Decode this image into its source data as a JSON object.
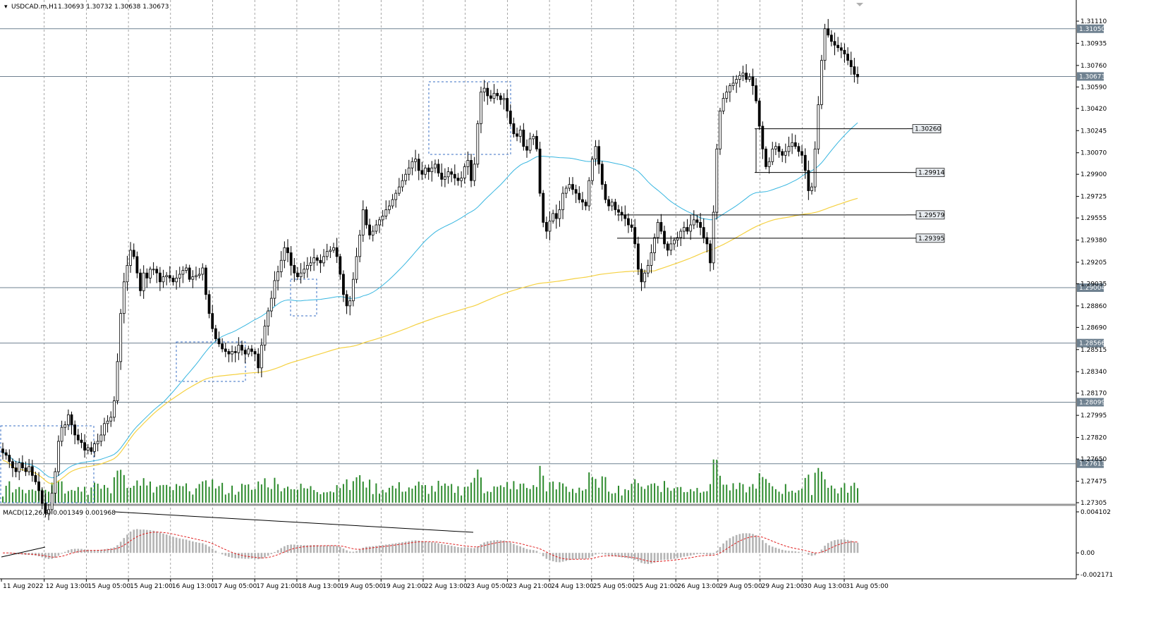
{
  "header": {
    "symbol": "USDCAD.m,H1",
    "ohlc": "1.30693 1.30732 1.30638 1.30673"
  },
  "macd_header": {
    "label": "MACD(12,26,9) 0.001349 0.001968"
  },
  "colors": {
    "bull": "#000000",
    "bear": "#000000",
    "ma_fast": "#38b6e0",
    "ma_slow": "#f5d142",
    "volume": "#2e8b2e",
    "macd_hist": "#b4b4b4",
    "macd_signal": "#e02020",
    "grid": "#808080",
    "hline": "#6f8190",
    "box": "#3a6fc4",
    "label_box": "#e8ecf0"
  },
  "chart_data": {
    "type": "candlestick",
    "timeframe": "H1",
    "price_axis": {
      "ticks": [
        "1.31110",
        "1.30935",
        "1.30760",
        "1.30590",
        "1.30420",
        "1.30245",
        "1.30070",
        "1.29900",
        "1.29725",
        "1.29555",
        "1.29380",
        "1.29205",
        "1.29035",
        "1.28860",
        "1.28690",
        "1.28515",
        "1.28340",
        "1.28170",
        "1.27995",
        "1.27820",
        "1.27650",
        "1.27475",
        "1.27305"
      ],
      "min": 1.27305,
      "max": 1.3111
    },
    "time_axis": {
      "labels": [
        "11 Aug 2022",
        "12 Aug 13:00",
        "15 Aug 05:00",
        "15 Aug 21:00",
        "16 Aug 13:00",
        "17 Aug 05:00",
        "17 Aug 21:00",
        "18 Aug 13:00",
        "19 Aug 05:00",
        "19 Aug 21:00",
        "22 Aug 13:00",
        "23 Aug 05:00",
        "23 Aug 21:00",
        "24 Aug 13:00",
        "25 Aug 05:00",
        "25 Aug 21:00",
        "26 Aug 13:00",
        "29 Aug 05:00",
        "29 Aug 21:00",
        "30 Aug 13:00",
        "31 Aug 05:00"
      ]
    },
    "horizontal_levels": [
      {
        "price": 1.3105,
        "label": "1.31050"
      },
      {
        "price": 1.30673,
        "label": "1.30673"
      },
      {
        "price": 1.29004,
        "label": "1.29004"
      },
      {
        "price": 1.28566,
        "label": "1.28566"
      },
      {
        "price": 1.28099,
        "label": "1.28099"
      },
      {
        "price": 1.27613,
        "label": "1.27613"
      }
    ],
    "trend_levels": [
      {
        "price": 1.3026,
        "label": "1.30260"
      },
      {
        "price": 1.29914,
        "label": "1.29914"
      },
      {
        "price": 1.29579,
        "label": "1.29579"
      },
      {
        "price": 1.29395,
        "label": "1.29395"
      }
    ],
    "candles": [
      1.277,
      1.2768,
      1.2763,
      1.2758,
      1.2755,
      1.2762,
      1.2758,
      1.2755,
      1.2759,
      1.2752,
      1.2747,
      1.274,
      1.273,
      1.2722,
      1.2725,
      1.2738,
      1.2755,
      1.2779,
      1.279,
      1.2792,
      1.28,
      1.2792,
      1.2784,
      1.278,
      1.2778,
      1.2772,
      1.2774,
      1.2771,
      1.2777,
      1.2779,
      1.2784,
      1.2793,
      1.2795,
      1.2798,
      1.2811,
      1.2842,
      1.288,
      1.2905,
      1.2918,
      1.293,
      1.2925,
      1.2912,
      1.2898,
      1.2912,
      1.2908,
      1.2915,
      1.2915,
      1.2912,
      1.2905,
      1.2909,
      1.291,
      1.2908,
      1.2905,
      1.2908,
      1.2911,
      1.2914,
      1.2916,
      1.2907,
      1.2909,
      1.291,
      1.2911,
      1.2916,
      1.2895,
      1.288,
      1.2868,
      1.286,
      1.2856,
      1.2852,
      1.285,
      1.2848,
      1.285,
      1.2849,
      1.2855,
      1.2851,
      1.2848,
      1.2852,
      1.285,
      1.2848,
      1.2837,
      1.2855,
      1.287,
      1.2882,
      1.2892,
      1.2906,
      1.2913,
      1.2922,
      1.2932,
      1.2928,
      1.2918,
      1.2912,
      1.2909,
      1.2912,
      1.2915,
      1.2918,
      1.292,
      1.2924,
      1.2922,
      1.292,
      1.2925,
      1.2929,
      1.293,
      1.2932,
      1.2925,
      1.2911,
      1.2895,
      1.2886,
      1.289,
      1.2907,
      1.2925,
      1.2942,
      1.2962,
      1.295,
      1.2942,
      1.2945,
      1.295,
      1.2954,
      1.2957,
      1.2962,
      1.2965,
      1.297,
      1.2975,
      1.298,
      1.2985,
      1.299,
      1.2995,
      1.3,
      1.3002,
      1.2993,
      1.299,
      1.2995,
      1.2992,
      1.2995,
      1.2998,
      1.2991,
      1.2986,
      1.2988,
      1.2992,
      1.299,
      1.2987,
      1.2985,
      1.2987,
      1.2996,
      1.3001,
      1.2985,
      1.2998,
      1.303,
      1.3055,
      1.3058,
      1.3052,
      1.305,
      1.3054,
      1.3052,
      1.3049,
      1.305,
      1.304,
      1.303,
      1.3022,
      1.302,
      1.3025,
      1.3012,
      1.3009,
      1.3018,
      1.302,
      1.301,
      1.2975,
      1.2952,
      1.2945,
      1.2953,
      1.2959,
      1.2955,
      1.2962,
      1.2975,
      1.2979,
      1.2982,
      1.2978,
      1.2975,
      1.297,
      1.2968,
      1.2965,
      1.2985,
      1.3002,
      1.3012,
      1.2998,
      1.2982,
      1.297,
      1.2965,
      1.2968,
      1.2962,
      1.296,
      1.2958,
      1.2955,
      1.295,
      1.2948,
      1.2935,
      1.2915,
      1.2905,
      1.2912,
      1.2918,
      1.2928,
      1.294,
      1.2952,
      1.2945,
      1.2935,
      1.293,
      1.2935,
      1.2938,
      1.294,
      1.2945,
      1.2948,
      1.2945,
      1.295,
      1.2954,
      1.2952,
      1.2948,
      1.294,
      1.2935,
      1.292,
      1.296,
      1.301,
      1.304,
      1.305,
      1.3055,
      1.306,
      1.3062,
      1.3065,
      1.3068,
      1.307,
      1.3065,
      1.3067,
      1.306,
      1.3048,
      1.3028,
      1.301,
      1.2996,
      1.3,
      1.301,
      1.3012,
      1.3008,
      1.3005,
      1.3008,
      1.3012,
      1.3015,
      1.3012,
      1.3008,
      1.3005,
      1.2993,
      1.2977,
      1.298,
      1.301,
      1.3045,
      1.308,
      1.3105,
      1.31,
      1.3095,
      1.3092,
      1.309,
      1.3088,
      1.3085,
      1.308,
      1.3075,
      1.3069,
      1.3067
    ],
    "ma_fast": "50-period MA (light blue)",
    "ma_slow": "200-period MA (yellow)",
    "volume": "tick volume histogram (green)",
    "macd": {
      "params": "12,26,9",
      "main": 0.001349,
      "signal": 0.001968,
      "axis_ticks": [
        "0.004102",
        "0.00",
        "-0.002171"
      ]
    },
    "annotations": [
      "dashed rectangles marking consolidation zones",
      "descending trend line on MACD (divergence)"
    ]
  }
}
